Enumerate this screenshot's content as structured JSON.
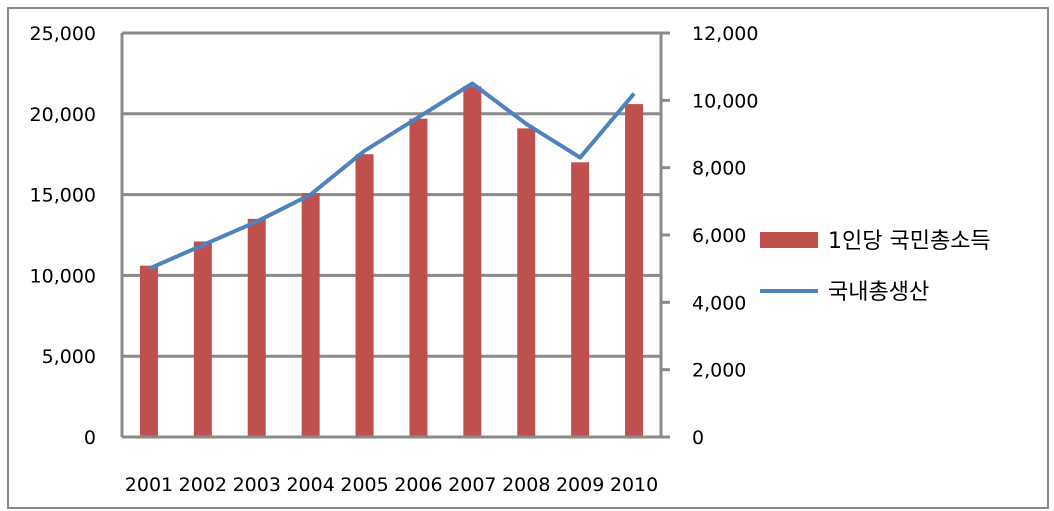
{
  "chart_data": {
    "type": "bar",
    "categories": [
      "2001",
      "2002",
      "2003",
      "2004",
      "2005",
      "2006",
      "2007",
      "2008",
      "2009",
      "2010"
    ],
    "series": [
      {
        "name": "1인당 국민총소득",
        "type": "bar",
        "axis": "left",
        "color": "#c0504d",
        "values": [
          10600,
          12100,
          13500,
          15100,
          17500,
          19700,
          21700,
          19100,
          17000,
          20600
        ]
      },
      {
        "name": "국내총생산",
        "type": "line",
        "axis": "right",
        "color": "#4f81bd",
        "values": [
          5000,
          5700,
          6400,
          7200,
          8500,
          9500,
          10500,
          9300,
          8300,
          10200
        ]
      }
    ],
    "yaxis_left": {
      "ylim": [
        0,
        25000
      ],
      "ticks": [
        "0",
        "5,000",
        "10,000",
        "15,000",
        "20,000",
        "25,000"
      ]
    },
    "yaxis_right": {
      "ylim": [
        0,
        12000
      ],
      "ticks": [
        "0",
        "2,000",
        "4,000",
        "6,000",
        "8,000",
        "10,000",
        "12,000"
      ]
    },
    "grid": true,
    "legend": "right",
    "title": "",
    "xlabel": "",
    "ylabel": ""
  }
}
